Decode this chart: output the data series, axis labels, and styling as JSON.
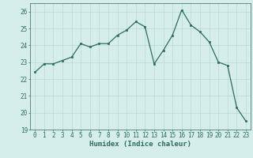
{
  "x": [
    0,
    1,
    2,
    3,
    4,
    5,
    6,
    7,
    8,
    9,
    10,
    11,
    12,
    13,
    14,
    15,
    16,
    17,
    18,
    19,
    20,
    21,
    22,
    23
  ],
  "y": [
    22.4,
    22.9,
    22.9,
    23.1,
    23.3,
    24.1,
    23.9,
    24.1,
    24.1,
    24.6,
    24.9,
    25.4,
    25.1,
    22.9,
    23.7,
    24.6,
    26.1,
    25.2,
    24.8,
    24.2,
    23.0,
    22.8,
    20.3,
    19.5
  ],
  "line_color": "#2e6b5e",
  "marker": "s",
  "marker_size": 2.0,
  "bg_color": "#d6eeeb",
  "grid_color": "#b8d8d4",
  "xlabel": "Humidex (Indice chaleur)",
  "ylim": [
    19,
    26.5
  ],
  "xlim": [
    -0.5,
    23.5
  ],
  "yticks": [
    19,
    20,
    21,
    22,
    23,
    24,
    25,
    26
  ],
  "xticks": [
    0,
    1,
    2,
    3,
    4,
    5,
    6,
    7,
    8,
    9,
    10,
    11,
    12,
    13,
    14,
    15,
    16,
    17,
    18,
    19,
    20,
    21,
    22,
    23
  ],
  "tick_color": "#2e6b5e",
  "label_fontsize": 6.5,
  "tick_fontsize": 5.5
}
